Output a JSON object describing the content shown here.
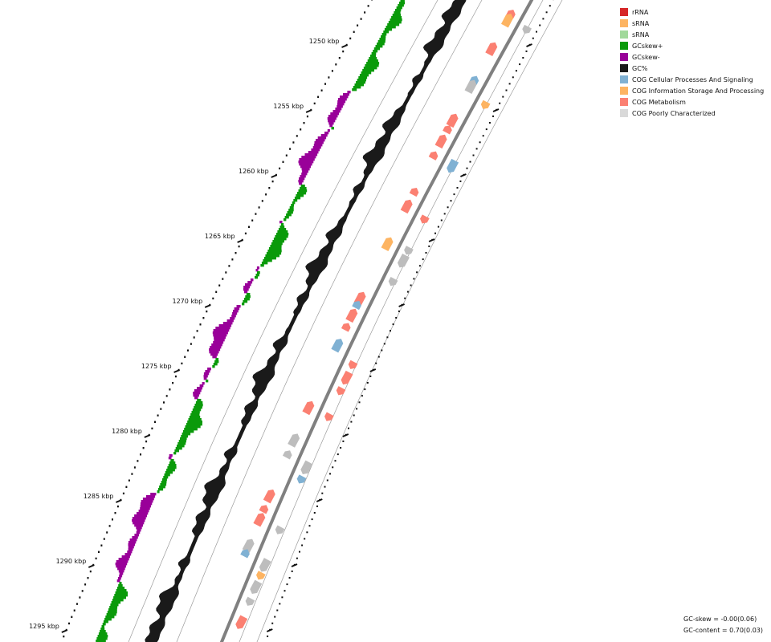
{
  "legend": [
    {
      "label": "rRNA",
      "color": "#d62728"
    },
    {
      "label": "sRNA",
      "color": "#fdb462"
    },
    {
      "label": "sRNA",
      "color": "#a1d99b"
    },
    {
      "label": "GCskew+",
      "color": "#0a9a0a"
    },
    {
      "label": "GCskew-",
      "color": "#990099"
    },
    {
      "label": "GC%",
      "color": "#1a1a1a"
    },
    {
      "label": "COG Cellular Processes And Signaling",
      "color": "#80b1d3"
    },
    {
      "label": "COG Information Storage And Processing",
      "color": "#fdb462"
    },
    {
      "label": "COG Metabolism",
      "color": "#fb8072"
    },
    {
      "label": "COG Poorly Characterized",
      "color": "#d9d9d9"
    }
  ],
  "ticks": [
    {
      "label": "1250 kbp",
      "kbp": 1250
    },
    {
      "label": "1255 kbp",
      "kbp": 1255
    },
    {
      "label": "1260 kbp",
      "kbp": 1260
    },
    {
      "label": "1265 kbp",
      "kbp": 1265
    },
    {
      "label": "1270 kbp",
      "kbp": 1270
    },
    {
      "label": "1275 kbp",
      "kbp": 1275
    },
    {
      "label": "1280 kbp",
      "kbp": 1280
    },
    {
      "label": "1285 kbp",
      "kbp": 1285
    },
    {
      "label": "1290 kbp",
      "kbp": 1290
    },
    {
      "label": "1295 kbp",
      "kbp": 1295
    }
  ],
  "stats": {
    "gc_skew": "GC-skew = -0.00(0.06)",
    "gc_content": "GC-content = 0.70(0.03)"
  },
  "colors": {
    "backbone": "#808080",
    "ring_line": "#9a9a9a",
    "gc_content": "#1a1a1a",
    "skew_pos": "#0a9a0a",
    "skew_neg": "#990099"
  },
  "features": [
    {
      "kbp": 1247.5,
      "strand": "+",
      "cog": "Metabolism"
    },
    {
      "kbp": 1248.0,
      "strand": "+",
      "cog": "Information Storage And Processing"
    },
    {
      "kbp": 1248.8,
      "strand": "-",
      "cog": "Poorly Characterized"
    },
    {
      "kbp": 1250.2,
      "strand": "+",
      "cog": "Metabolism"
    },
    {
      "kbp": 1252.6,
      "strand": "+",
      "cog": "Cellular Processes And Signaling"
    },
    {
      "kbp": 1253.1,
      "strand": "+",
      "cog": "Poorly Characterized"
    },
    {
      "kbp": 1254.6,
      "strand": "-",
      "cog": "Information Storage And Processing"
    },
    {
      "kbp": 1255.7,
      "strand": "+",
      "cog": "Metabolism"
    },
    {
      "kbp": 1256.4,
      "strand": "+",
      "cog": "Metabolism"
    },
    {
      "kbp": 1257.3,
      "strand": "+",
      "cog": "Metabolism"
    },
    {
      "kbp": 1258.4,
      "strand": "+",
      "cog": "Metabolism"
    },
    {
      "kbp": 1259.3,
      "strand": "-",
      "cog": "Cellular Processes And Signaling"
    },
    {
      "kbp": 1261.2,
      "strand": "+",
      "cog": "Metabolism"
    },
    {
      "kbp": 1262.3,
      "strand": "+",
      "cog": "Metabolism"
    },
    {
      "kbp": 1263.4,
      "strand": "-",
      "cog": "Metabolism"
    },
    {
      "kbp": 1265.2,
      "strand": "+",
      "cog": "Information Storage And Processing"
    },
    {
      "kbp": 1265.8,
      "strand": "-",
      "cog": "Poorly Characterized"
    },
    {
      "kbp": 1266.6,
      "strand": "-",
      "cog": "Poorly Characterized"
    },
    {
      "kbp": 1268.2,
      "strand": "-",
      "cog": "Poorly Characterized"
    },
    {
      "kbp": 1269.4,
      "strand": "+",
      "cog": "Metabolism"
    },
    {
      "kbp": 1269.9,
      "strand": "+",
      "cog": "Cellular Processes And Signaling"
    },
    {
      "kbp": 1270.7,
      "strand": "+",
      "cog": "Metabolism"
    },
    {
      "kbp": 1271.6,
      "strand": "+",
      "cog": "Metabolism"
    },
    {
      "kbp": 1273.0,
      "strand": "+",
      "cog": "Cellular Processes And Signaling"
    },
    {
      "kbp": 1274.6,
      "strand": "-",
      "cog": "Metabolism"
    },
    {
      "kbp": 1275.6,
      "strand": "-",
      "cog": "Metabolism"
    },
    {
      "kbp": 1276.6,
      "strand": "-",
      "cog": "Metabolism"
    },
    {
      "kbp": 1277.8,
      "strand": "+",
      "cog": "Metabolism"
    },
    {
      "kbp": 1278.6,
      "strand": "-",
      "cog": "Metabolism"
    },
    {
      "kbp": 1280.3,
      "strand": "+",
      "cog": "Poorly Characterized"
    },
    {
      "kbp": 1281.4,
      "strand": "+",
      "cog": "Poorly Characterized"
    },
    {
      "kbp": 1282.5,
      "strand": "-",
      "cog": "Poorly Characterized"
    },
    {
      "kbp": 1283.4,
      "strand": "-",
      "cog": "Cellular Processes And Signaling"
    },
    {
      "kbp": 1284.6,
      "strand": "+",
      "cog": "Metabolism"
    },
    {
      "kbp": 1285.6,
      "strand": "+",
      "cog": "Metabolism"
    },
    {
      "kbp": 1286.4,
      "strand": "+",
      "cog": "Metabolism"
    },
    {
      "kbp": 1287.3,
      "strand": "-",
      "cog": "Poorly Characterized"
    },
    {
      "kbp": 1288.4,
      "strand": "+",
      "cog": "Poorly Characterized"
    },
    {
      "kbp": 1289.0,
      "strand": "+",
      "cog": "Cellular Processes And Signaling"
    },
    {
      "kbp": 1290.0,
      "strand": "-",
      "cog": "Poorly Characterized"
    },
    {
      "kbp": 1290.8,
      "strand": "-",
      "cog": "Information Storage And Processing"
    },
    {
      "kbp": 1291.7,
      "strand": "-",
      "cog": "Poorly Characterized"
    },
    {
      "kbp": 1292.8,
      "strand": "-",
      "cog": "Poorly Characterized"
    },
    {
      "kbp": 1294.4,
      "strand": "-",
      "cog": "Metabolism"
    }
  ]
}
